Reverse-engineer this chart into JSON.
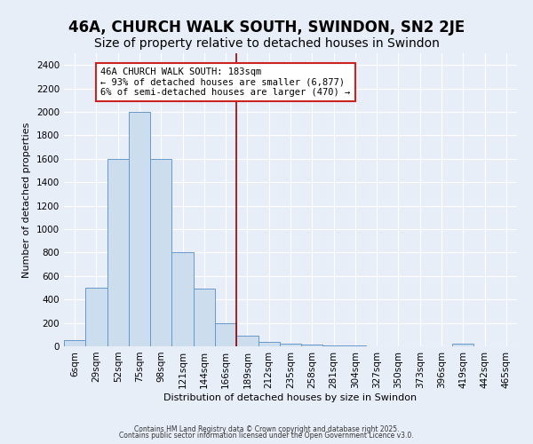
{
  "title": "46A, CHURCH WALK SOUTH, SWINDON, SN2 2JE",
  "subtitle": "Size of property relative to detached houses in Swindon",
  "xlabel": "Distribution of detached houses by size in Swindon",
  "ylabel": "Number of detached properties",
  "categories": [
    "6sqm",
    "29sqm",
    "52sqm",
    "75sqm",
    "98sqm",
    "121sqm",
    "144sqm",
    "166sqm",
    "189sqm",
    "212sqm",
    "235sqm",
    "258sqm",
    "281sqm",
    "304sqm",
    "327sqm",
    "350sqm",
    "373sqm",
    "396sqm",
    "419sqm",
    "442sqm",
    "465sqm"
  ],
  "bar_heights": [
    50,
    500,
    1600,
    2000,
    1600,
    800,
    490,
    200,
    90,
    35,
    25,
    18,
    10,
    5,
    3,
    2,
    0,
    0,
    25,
    0,
    0
  ],
  "bar_color": "#ccdded",
  "bar_edge_color": "#6699cc",
  "vline_color": "#990000",
  "vline_x": 7.5,
  "annotation_text": "46A CHURCH WALK SOUTH: 183sqm\n← 93% of detached houses are smaller (6,877)\n6% of semi-detached houses are larger (470) →",
  "annotation_box_facecolor": "#ffffff",
  "annotation_box_edgecolor": "#cc2222",
  "footer_line1": "Contains HM Land Registry data © Crown copyright and database right 2025.",
  "footer_line2": "Contains public sector information licensed under the Open Government Licence v3.0.",
  "ylim": [
    0,
    2500
  ],
  "yticks": [
    0,
    200,
    400,
    600,
    800,
    1000,
    1200,
    1400,
    1600,
    1800,
    2000,
    2200,
    2400
  ],
  "background_color": "#e8eef8",
  "title_fontsize": 12,
  "subtitle_fontsize": 10,
  "annotation_fontsize": 7.5,
  "axis_fontsize": 8,
  "tick_fontsize": 7.5
}
